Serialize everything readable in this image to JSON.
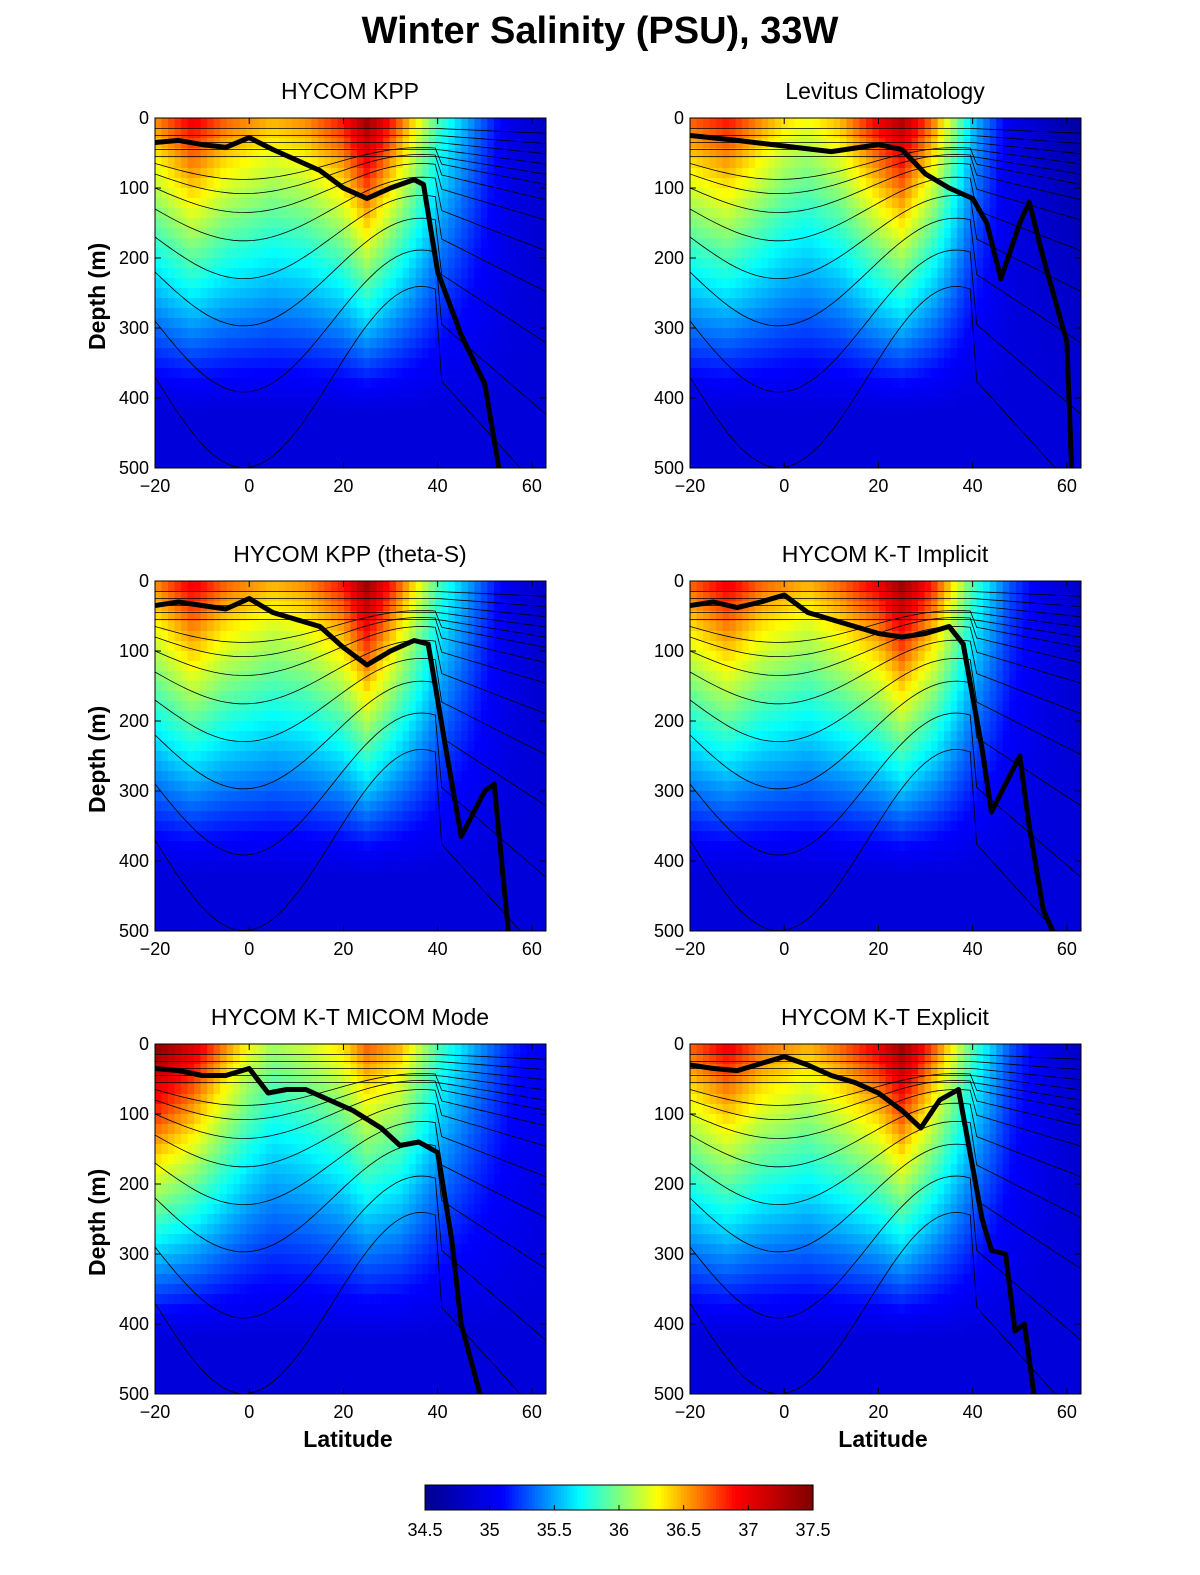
{
  "figure_title": "Winter Salinity (PSU), 33W",
  "xlabel": "Latitude",
  "ylabel": "Depth (m)",
  "colors": {
    "colormap": [
      "#00008f",
      "#0000ff",
      "#00ffff",
      "#ffff00",
      "#ff0000",
      "#800000"
    ],
    "mixed_layer_line": "#000000",
    "contour": "#000000"
  },
  "chart_data": [
    {
      "type": "heatmap",
      "title": "HYCOM KPP",
      "xlim": [
        -20,
        63
      ],
      "ylim": [
        0,
        500
      ],
      "xticks": [
        -20,
        0,
        20,
        40,
        60
      ],
      "yticks": [
        0,
        100,
        200,
        300,
        400,
        500
      ],
      "y_reversed": true,
      "salinity_surface_profile": {
        "lat": [
          -20,
          -12,
          -5,
          0,
          5,
          12,
          20,
          25,
          32,
          40,
          48,
          55,
          63
        ],
        "psu": [
          36.6,
          37.0,
          36.7,
          36.6,
          36.5,
          36.6,
          36.9,
          37.4,
          36.7,
          35.9,
          35.4,
          35.0,
          34.8
        ]
      },
      "mixed_layer_depth": {
        "lat": [
          -20,
          -15,
          -10,
          -5,
          0,
          5,
          10,
          15,
          20,
          25,
          30,
          35,
          37,
          40,
          45,
          50,
          53
        ],
        "depth": [
          35,
          32,
          38,
          42,
          28,
          45,
          60,
          75,
          100,
          115,
          100,
          88,
          95,
          220,
          310,
          380,
          500
        ]
      }
    },
    {
      "type": "heatmap",
      "title": "Levitus Climatology",
      "xlim": [
        -20,
        63
      ],
      "ylim": [
        0,
        500
      ],
      "xticks": [
        -20,
        0,
        20,
        40,
        60
      ],
      "yticks": [
        0,
        100,
        200,
        300,
        400,
        500
      ],
      "y_reversed": true,
      "salinity_surface_profile": {
        "lat": [
          -20,
          -12,
          -5,
          0,
          5,
          12,
          20,
          25,
          32,
          40,
          48,
          55,
          63
        ],
        "psu": [
          36.7,
          36.9,
          36.6,
          36.4,
          36.3,
          36.5,
          37.0,
          37.3,
          36.6,
          35.6,
          35.0,
          34.8,
          34.6
        ]
      },
      "mixed_layer_depth": {
        "lat": [
          -20,
          -10,
          0,
          10,
          20,
          25,
          30,
          35,
          40,
          43,
          46,
          50,
          52,
          55,
          60,
          61
        ],
        "depth": [
          25,
          32,
          40,
          48,
          38,
          45,
          80,
          100,
          115,
          150,
          230,
          150,
          120,
          200,
          320,
          500
        ]
      }
    },
    {
      "type": "heatmap",
      "title": "HYCOM KPP (theta-S)",
      "xlim": [
        -20,
        63
      ],
      "ylim": [
        0,
        500
      ],
      "xticks": [
        -20,
        0,
        20,
        40,
        60
      ],
      "yticks": [
        0,
        100,
        200,
        300,
        400,
        500
      ],
      "y_reversed": true,
      "salinity_surface_profile": {
        "lat": [
          -20,
          -12,
          -5,
          0,
          5,
          12,
          20,
          25,
          32,
          40,
          48,
          55,
          63
        ],
        "psu": [
          36.6,
          37.0,
          36.7,
          36.6,
          36.5,
          36.6,
          36.9,
          37.4,
          36.7,
          35.9,
          35.4,
          35.0,
          34.8
        ]
      },
      "mixed_layer_depth": {
        "lat": [
          -20,
          -15,
          -10,
          -5,
          0,
          5,
          10,
          15,
          20,
          25,
          30,
          35,
          38,
          42,
          45,
          50,
          52,
          55
        ],
        "depth": [
          35,
          30,
          35,
          40,
          25,
          45,
          55,
          65,
          95,
          120,
          100,
          85,
          90,
          250,
          365,
          300,
          290,
          500
        ]
      }
    },
    {
      "type": "heatmap",
      "title": "HYCOM K-T Implicit",
      "xlim": [
        -20,
        63
      ],
      "ylim": [
        0,
        500
      ],
      "xticks": [
        -20,
        0,
        20,
        40,
        60
      ],
      "yticks": [
        0,
        100,
        200,
        300,
        400,
        500
      ],
      "y_reversed": true,
      "salinity_surface_profile": {
        "lat": [
          -20,
          -12,
          -5,
          0,
          5,
          12,
          20,
          25,
          32,
          40,
          48,
          55,
          63
        ],
        "psu": [
          36.7,
          37.0,
          36.7,
          36.6,
          36.5,
          36.7,
          37.0,
          37.4,
          36.8,
          35.9,
          35.3,
          35.0,
          34.8
        ]
      },
      "mixed_layer_depth": {
        "lat": [
          -20,
          -15,
          -10,
          -5,
          0,
          5,
          10,
          15,
          20,
          25,
          30,
          35,
          38,
          42,
          44,
          47,
          50,
          52,
          55,
          57
        ],
        "depth": [
          35,
          30,
          38,
          30,
          20,
          45,
          55,
          65,
          75,
          80,
          75,
          65,
          90,
          240,
          330,
          290,
          250,
          350,
          470,
          500
        ]
      }
    },
    {
      "type": "heatmap",
      "title": "HYCOM K-T MICOM Mode",
      "xlim": [
        -20,
        63
      ],
      "ylim": [
        0,
        500
      ],
      "xticks": [
        -20,
        0,
        20,
        40,
        60
      ],
      "yticks": [
        0,
        100,
        200,
        300,
        400,
        500
      ],
      "y_reversed": true,
      "salinity_surface_profile": {
        "lat": [
          -20,
          -12,
          -5,
          0,
          5,
          12,
          20,
          25,
          32,
          40,
          48,
          55,
          63
        ],
        "psu": [
          37.5,
          37.1,
          36.6,
          36.3,
          36.1,
          36.2,
          36.4,
          36.7,
          36.5,
          35.9,
          35.5,
          35.2,
          35.0
        ]
      },
      "mixed_layer_depth": {
        "lat": [
          -20,
          -15,
          -10,
          -5,
          0,
          4,
          8,
          12,
          17,
          22,
          28,
          32,
          36,
          40,
          43,
          45,
          49
        ],
        "depth": [
          35,
          38,
          45,
          45,
          35,
          70,
          65,
          65,
          80,
          95,
          120,
          145,
          140,
          155,
          280,
          400,
          500
        ]
      }
    },
    {
      "type": "heatmap",
      "title": "HYCOM K-T Explicit",
      "xlim": [
        -20,
        63
      ],
      "ylim": [
        0,
        500
      ],
      "xticks": [
        -20,
        0,
        20,
        40,
        60
      ],
      "yticks": [
        0,
        100,
        200,
        300,
        400,
        500
      ],
      "y_reversed": true,
      "salinity_surface_profile": {
        "lat": [
          -20,
          -12,
          -5,
          0,
          5,
          12,
          20,
          25,
          32,
          40,
          48,
          55,
          63
        ],
        "psu": [
          36.7,
          37.0,
          36.7,
          36.6,
          36.5,
          36.7,
          37.0,
          37.4,
          36.7,
          35.9,
          35.3,
          35.0,
          34.8
        ]
      },
      "mixed_layer_depth": {
        "lat": [
          -20,
          -15,
          -10,
          -5,
          0,
          5,
          10,
          15,
          20,
          25,
          29,
          33,
          37,
          42,
          44,
          47,
          49,
          51,
          53
        ],
        "depth": [
          30,
          35,
          38,
          28,
          18,
          30,
          45,
          55,
          70,
          95,
          120,
          80,
          65,
          250,
          295,
          300,
          410,
          400,
          500
        ]
      }
    },
    {
      "type": "colorbar",
      "range": [
        34.5,
        37.5
      ],
      "tick_labels": [
        "34.5",
        "35",
        "35.5",
        "36",
        "36.5",
        "37",
        "37.5"
      ]
    }
  ]
}
